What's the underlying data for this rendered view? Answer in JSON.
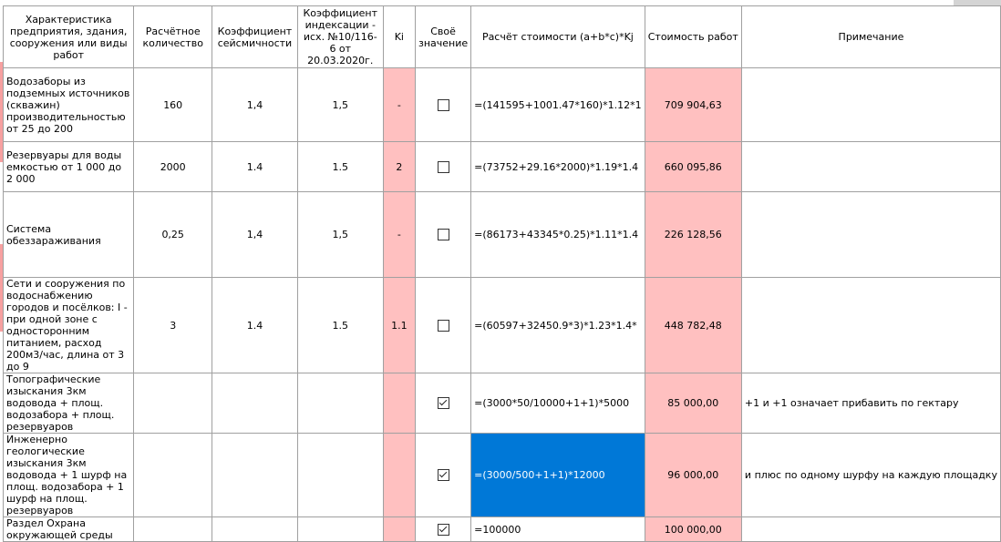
{
  "headers": {
    "characteristic": "Характеристика предприятия, здания, сооружения или виды работ",
    "quantity": "Расчётное количество",
    "seismic": "Коэффициент сейсмичности",
    "indexation": "Коэффициент индексации - исх. №10/116-6 от 20.03.2020г.",
    "ki": "Ki",
    "own_value": "Своё значение",
    "formula": "Расчёт стоимости (a+b*c)*Kj",
    "cost": "Стоимость работ",
    "note": "Примечание"
  },
  "rows": [
    {
      "characteristic": "Водозаборы из подземных источников (скважин) производительностью от 25 до 200",
      "quantity": "160",
      "seismic": "1,4",
      "indexation": "1,5",
      "ki": "-",
      "own_value_checked": false,
      "formula": "=(141595+1001.47*160)*1.12*1",
      "cost": "709 904,63",
      "note": ""
    },
    {
      "characteristic": "Резервуары для воды емкостью от 1 000 до 2 000",
      "quantity": "2000",
      "seismic": "1.4",
      "indexation": "1.5",
      "ki": "2",
      "own_value_checked": false,
      "formula": "=(73752+29.16*2000)*1.19*1.4",
      "cost": "660 095,86",
      "note": ""
    },
    {
      "characteristic": "Система обеззараживания",
      "quantity": "0,25",
      "seismic": "1,4",
      "indexation": "1,5",
      "ki": "-",
      "own_value_checked": false,
      "formula": "=(86173+43345*0.25)*1.11*1.4",
      "cost": "226 128,56",
      "note": ""
    },
    {
      "characteristic": "Сети и сооружения по водоснабжению городов и посёлков: I - при одной зоне с односторонним питанием, расход 200м3/час, длина от 3 до 9",
      "quantity": "3",
      "seismic": "1.4",
      "indexation": "1.5",
      "ki": "1.1",
      "own_value_checked": false,
      "formula": "=(60597+32450.9*3)*1.23*1.4*",
      "cost": "448 782,48",
      "note": ""
    },
    {
      "characteristic": "Топографические изыскания 3км водовода + площ. водозабора + площ. резервуаров",
      "quantity": "",
      "seismic": "",
      "indexation": "",
      "ki": "",
      "own_value_checked": true,
      "formula": "=(3000*50/10000+1+1)*5000",
      "cost": "85 000,00",
      "note": "+1 и +1 означает прибавить по гектару"
    },
    {
      "characteristic": "Инженерно геологические изыскания 3км водовода + 1 шурф на площ. водозабора + 1 шурф на площ. резервуаров",
      "quantity": "",
      "seismic": "",
      "indexation": "",
      "ki": "",
      "own_value_checked": true,
      "formula": "=(3000/500+1+1)*12000",
      "cost": "96 000,00",
      "note": "и плюс по одному шурфу на каждую площадку"
    },
    {
      "characteristic": "Раздел Охрана окружающей среды",
      "quantity": "",
      "seismic": "",
      "indexation": "",
      "ki": "",
      "own_value_checked": true,
      "formula": "=100000",
      "cost": "100 000,00",
      "note": ""
    }
  ],
  "colors": {
    "pink_cell": "#ffc0c0",
    "selected_cell": "#0078d7",
    "grid_line": "#a0a0a0",
    "row_marker": "#f7a0a0"
  }
}
